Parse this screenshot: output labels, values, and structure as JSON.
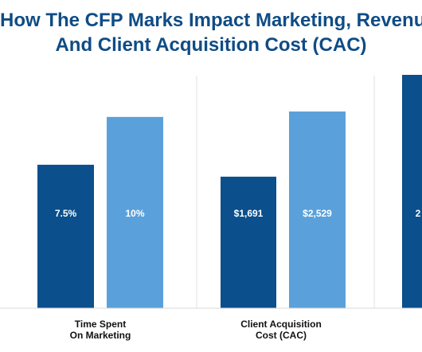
{
  "header": {
    "title_line1": "How The CFP Marks Impact Marketing, Revenue",
    "title_line2": "And Client Acquisition Cost (CAC)"
  },
  "chart_data": [
    {
      "type": "bar",
      "categories": [
        [
          "Time Spent",
          "On Marketing"
        ]
      ],
      "series": [
        {
          "color": "#0b4f8c",
          "values": [
            7.5
          ],
          "labels": [
            "7.5%"
          ]
        },
        {
          "color": "#5aa1db",
          "values": [
            10
          ],
          "labels": [
            "10%"
          ]
        }
      ],
      "ylim": [
        0,
        12.2
      ],
      "grid": false
    },
    {
      "type": "bar",
      "categories": [
        [
          "Client Acquisition",
          "Cost (CAC)"
        ]
      ],
      "series": [
        {
          "color": "#0b4f8c",
          "values": [
            1691
          ],
          "labels": [
            "$1,691"
          ]
        },
        {
          "color": "#5aa1db",
          "values": [
            2529
          ],
          "labels": [
            "$2,529"
          ]
        }
      ],
      "ylim": [
        0,
        3000
      ],
      "grid": false
    },
    {
      "type": "bar",
      "categories": [
        [
          "",
          ""
        ]
      ],
      "series": [
        {
          "color": "#0b4f8c",
          "values": [
            1
          ],
          "labels": [
            "2"
          ]
        }
      ],
      "ylim": [
        0,
        1.0
      ],
      "grid": false
    }
  ]
}
